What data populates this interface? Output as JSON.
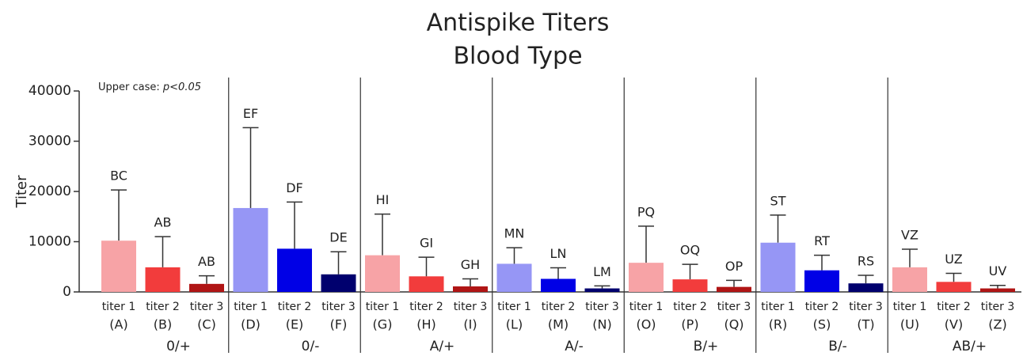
{
  "chart_data": {
    "type": "bar",
    "title": "Antispike Titers",
    "subtitle": "Blood Type",
    "y_label": "Titer",
    "annotation": {
      "text": "Upper case:",
      "emphasis": "p<0.05"
    },
    "ylim": [
      0,
      40000
    ],
    "yticks": [
      0,
      10000,
      20000,
      30000,
      40000
    ],
    "groups": [
      {
        "name": "0/+",
        "categories": [
          "titer 1",
          "titer 2",
          "titer 3"
        ],
        "codes": [
          "(A)",
          "(B)",
          "(C)"
        ],
        "values": [
          10200,
          4900,
          1600
        ],
        "errors": [
          10100,
          6100,
          1600
        ],
        "letters": [
          "BC",
          "AB",
          "AB"
        ],
        "colors": [
          "#f7a3a6",
          "#f23c3c",
          "#b01515"
        ]
      },
      {
        "name": "0/-",
        "categories": [
          "titer 1",
          "titer 2",
          "titer 3"
        ],
        "codes": [
          "(D)",
          "(E)",
          "(F)"
        ],
        "values": [
          16700,
          8600,
          3500
        ],
        "errors": [
          16000,
          9300,
          4500
        ],
        "letters": [
          "EF",
          "DF",
          "DE"
        ],
        "colors": [
          "#9696f5",
          "#0000e6",
          "#00006e"
        ]
      },
      {
        "name": "A/+",
        "categories": [
          "titer 1",
          "titer 2",
          "titer 3"
        ],
        "codes": [
          "(G)",
          "(H)",
          "(I)"
        ],
        "values": [
          7300,
          3100,
          1100
        ],
        "errors": [
          8200,
          3800,
          1500
        ],
        "letters": [
          "HI",
          "GI",
          "GH"
        ],
        "colors": [
          "#f7a3a6",
          "#f23c3c",
          "#b01515"
        ]
      },
      {
        "name": "A/-",
        "categories": [
          "titer 1",
          "titer 2",
          "titer 3"
        ],
        "codes": [
          "(L)",
          "(M)",
          "(N)"
        ],
        "values": [
          5600,
          2600,
          700
        ],
        "errors": [
          3200,
          2200,
          500
        ],
        "letters": [
          "MN",
          "LN",
          "LM"
        ],
        "colors": [
          "#9696f5",
          "#0000e6",
          "#00006e"
        ]
      },
      {
        "name": "B/+",
        "categories": [
          "titer 1",
          "titer 2",
          "titer 3"
        ],
        "codes": [
          "(O)",
          "(P)",
          "(Q)"
        ],
        "values": [
          5800,
          2500,
          1000
        ],
        "errors": [
          7300,
          3000,
          1300
        ],
        "letters": [
          "PQ",
          "OQ",
          "OP"
        ],
        "colors": [
          "#f7a3a6",
          "#f23c3c",
          "#b01515"
        ]
      },
      {
        "name": "B/-",
        "categories": [
          "titer 1",
          "titer 2",
          "titer 3"
        ],
        "codes": [
          "(R)",
          "(S)",
          "(T)"
        ],
        "values": [
          9800,
          4300,
          1700
        ],
        "errors": [
          5500,
          3000,
          1600
        ],
        "letters": [
          "ST",
          "RT",
          "RS"
        ],
        "colors": [
          "#9696f5",
          "#0000e6",
          "#00006e"
        ]
      },
      {
        "name": "AB/+",
        "categories": [
          "titer 1",
          "titer 2",
          "titer 3"
        ],
        "codes": [
          "(U)",
          "(V)",
          "(Z)"
        ],
        "values": [
          4900,
          2000,
          700
        ],
        "errors": [
          3600,
          1700,
          600
        ],
        "letters": [
          "VZ",
          "UZ",
          "UV"
        ],
        "colors": [
          "#f7a3a6",
          "#f23c3c",
          "#b01515"
        ]
      }
    ]
  }
}
